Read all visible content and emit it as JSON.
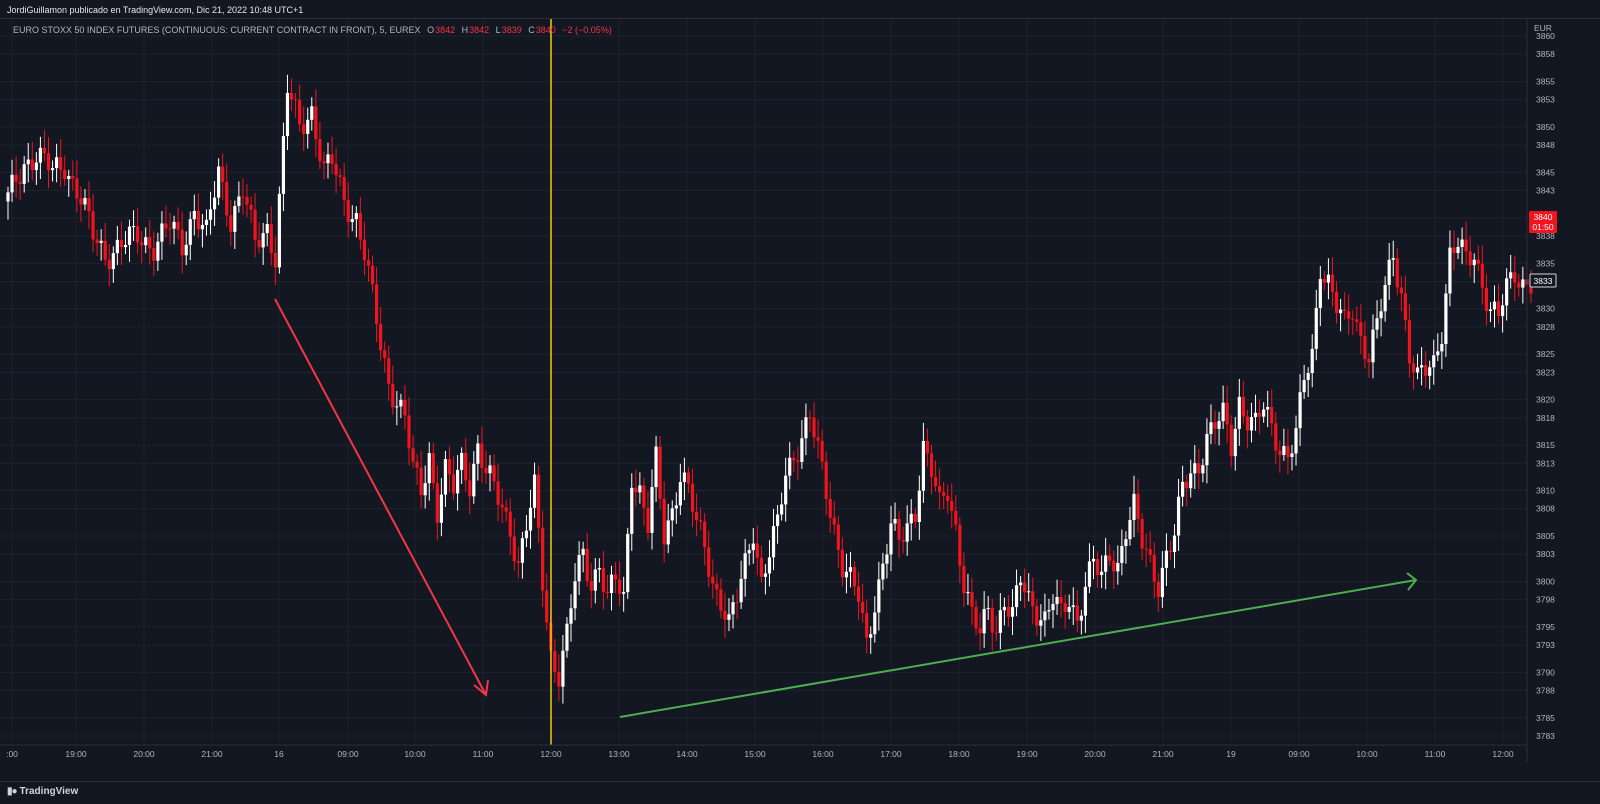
{
  "publisher_line": "JordiGuillamon publicado en TradingView.com, Dic 21, 2022 10:48 UTC+1",
  "legend": {
    "instrument": "EURO STOXX 50 INDEX FUTURES (CONTINUOUS: CURRENT CONTRACT IN FRONT), 5, EUREX",
    "o_label": "O",
    "o_value": "3842",
    "h_label": "H",
    "h_value": "3842",
    "l_label": "L",
    "l_value": "3839",
    "c_label": "C",
    "c_value": "3840",
    "change": "−2 (−0.05%)"
  },
  "footer": {
    "brand": "TradingView",
    "logo_icon": "tradingview-logo-icon"
  },
  "colors": {
    "background": "#131722",
    "grid": "#1e2230",
    "up_candle": "#ffffff",
    "down_candle": "#f0141e",
    "vertical_marker": "#f5c518",
    "down_arrow": "#f23645",
    "up_arrow": "#4caf50",
    "price_tag": "#f0141e"
  },
  "chart_data": {
    "type": "candlestick",
    "currency_label": "EUR",
    "ylim": [
      3782,
      3861
    ],
    "y_ticks": [
      "3860",
      "3858",
      "3855",
      "3853",
      "3850",
      "3848",
      "3845",
      "3843",
      "3840",
      "3838",
      "3835",
      "3833",
      "3830",
      "3828",
      "3825",
      "3823",
      "3820",
      "3818",
      "3815",
      "3813",
      "3810",
      "3808",
      "3805",
      "3803",
      "3800",
      "3798",
      "3795",
      "3793",
      "3790",
      "3788",
      "3785",
      "3783"
    ],
    "x_ticks": [
      ":00",
      "19:00",
      "20:00",
      "21:00",
      "16",
      "09:00",
      "10:00",
      "11:00",
      "12:00",
      "13:00",
      "14:00",
      "15:00",
      "16:00",
      "17:00",
      "18:00",
      "19:00",
      "20:00",
      "21:00",
      "19",
      "09:00",
      "10:00",
      "11:00",
      "12:00"
    ],
    "last_price_label": "3840",
    "countdown_label": "01:50",
    "crosshair_price_label": "3833",
    "close_path": [
      [
        0,
        3842
      ],
      [
        4,
        3846
      ],
      [
        7,
        3847
      ],
      [
        11,
        3845
      ],
      [
        14,
        3846
      ],
      [
        18,
        3842
      ],
      [
        21,
        3838
      ],
      [
        24,
        3836
      ],
      [
        28,
        3837
      ],
      [
        32,
        3838
      ],
      [
        36,
        3837
      ],
      [
        40,
        3839
      ],
      [
        43,
        3837
      ],
      [
        46,
        3841
      ],
      [
        49,
        3838
      ],
      [
        52,
        3845
      ],
      [
        55,
        3840
      ],
      [
        58,
        3843
      ],
      [
        61,
        3837
      ],
      [
        64,
        3839
      ],
      [
        66,
        3836
      ],
      [
        69,
        3854
      ],
      [
        72,
        3850
      ],
      [
        75,
        3852
      ],
      [
        78,
        3845
      ],
      [
        80,
        3846
      ],
      [
        83,
        3842
      ],
      [
        86,
        3840
      ],
      [
        88,
        3836
      ],
      [
        90,
        3831
      ],
      [
        92,
        3826
      ],
      [
        94,
        3822
      ],
      [
        96,
        3820
      ],
      [
        98,
        3818
      ],
      [
        100,
        3812
      ],
      [
        102,
        3810
      ],
      [
        104,
        3814
      ],
      [
        106,
        3808
      ],
      [
        108,
        3812
      ],
      [
        110,
        3810
      ],
      [
        112,
        3813
      ],
      [
        114,
        3811
      ],
      [
        116,
        3815
      ],
      [
        118,
        3812
      ],
      [
        120,
        3810
      ],
      [
        122,
        3808
      ],
      [
        124,
        3806
      ],
      [
        126,
        3802
      ],
      [
        128,
        3806
      ],
      [
        130,
        3810
      ],
      [
        132,
        3800
      ],
      [
        134,
        3792
      ],
      [
        136,
        3790
      ],
      [
        138,
        3794
      ],
      [
        140,
        3800
      ],
      [
        142,
        3803
      ],
      [
        144,
        3800
      ],
      [
        146,
        3802
      ],
      [
        148,
        3798
      ],
      [
        150,
        3800
      ],
      [
        152,
        3798
      ],
      [
        154,
        3812
      ],
      [
        156,
        3810
      ],
      [
        158,
        3806
      ],
      [
        160,
        3813
      ],
      [
        162,
        3805
      ],
      [
        164,
        3808
      ],
      [
        166,
        3812
      ],
      [
        168,
        3810
      ],
      [
        170,
        3806
      ],
      [
        172,
        3804
      ],
      [
        174,
        3800
      ],
      [
        176,
        3798
      ],
      [
        178,
        3795
      ],
      [
        180,
        3798
      ],
      [
        182,
        3802
      ],
      [
        184,
        3806
      ],
      [
        186,
        3800
      ],
      [
        188,
        3803
      ],
      [
        190,
        3806
      ],
      [
        192,
        3812
      ],
      [
        194,
        3814
      ],
      [
        196,
        3816
      ],
      [
        198,
        3818
      ],
      [
        200,
        3814
      ],
      [
        202,
        3810
      ],
      [
        204,
        3806
      ],
      [
        206,
        3802
      ],
      [
        208,
        3800
      ],
      [
        210,
        3798
      ],
      [
        212,
        3793
      ],
      [
        214,
        3798
      ],
      [
        216,
        3802
      ],
      [
        218,
        3806
      ],
      [
        220,
        3804
      ],
      [
        222,
        3806
      ],
      [
        224,
        3808
      ],
      [
        226,
        3815
      ],
      [
        228,
        3812
      ],
      [
        230,
        3808
      ],
      [
        232,
        3810
      ],
      [
        234,
        3806
      ],
      [
        236,
        3800
      ],
      [
        238,
        3796
      ],
      [
        240,
        3794
      ],
      [
        242,
        3797
      ],
      [
        244,
        3795
      ],
      [
        246,
        3798
      ],
      [
        248,
        3796
      ],
      [
        250,
        3800
      ],
      [
        252,
        3798
      ],
      [
        254,
        3797
      ],
      [
        256,
        3796
      ],
      [
        258,
        3798
      ],
      [
        260,
        3796
      ],
      [
        262,
        3798
      ],
      [
        264,
        3796
      ],
      [
        266,
        3800
      ],
      [
        268,
        3802
      ],
      [
        270,
        3800
      ],
      [
        272,
        3803
      ],
      [
        274,
        3802
      ],
      [
        276,
        3806
      ],
      [
        278,
        3808
      ],
      [
        280,
        3804
      ],
      [
        282,
        3802
      ],
      [
        284,
        3800
      ],
      [
        286,
        3803
      ],
      [
        288,
        3805
      ],
      [
        290,
        3810
      ],
      [
        292,
        3812
      ],
      [
        294,
        3813
      ],
      [
        296,
        3816
      ],
      [
        298,
        3817
      ],
      [
        300,
        3818
      ],
      [
        302,
        3815
      ],
      [
        304,
        3820
      ],
      [
        306,
        3818
      ],
      [
        308,
        3817
      ],
      [
        310,
        3819
      ],
      [
        312,
        3817
      ],
      [
        314,
        3815
      ],
      [
        316,
        3814
      ],
      [
        318,
        3816
      ],
      [
        320,
        3822
      ],
      [
        322,
        3825
      ],
      [
        324,
        3835
      ],
      [
        326,
        3833
      ],
      [
        328,
        3830
      ],
      [
        330,
        3828
      ],
      [
        332,
        3830
      ],
      [
        334,
        3827
      ],
      [
        336,
        3825
      ],
      [
        338,
        3828
      ],
      [
        340,
        3832
      ],
      [
        342,
        3836
      ],
      [
        344,
        3832
      ],
      [
        346,
        3825
      ],
      [
        348,
        3822
      ],
      [
        350,
        3823
      ],
      [
        352,
        3824
      ],
      [
        354,
        3828
      ],
      [
        356,
        3836
      ],
      [
        358,
        3837
      ],
      [
        360,
        3835
      ],
      [
        362,
        3836
      ],
      [
        364,
        3833
      ],
      [
        366,
        3830
      ],
      [
        368,
        3829
      ],
      [
        370,
        3832
      ],
      [
        372,
        3834
      ],
      [
        374,
        3833
      ],
      [
        376,
        3833
      ]
    ]
  }
}
